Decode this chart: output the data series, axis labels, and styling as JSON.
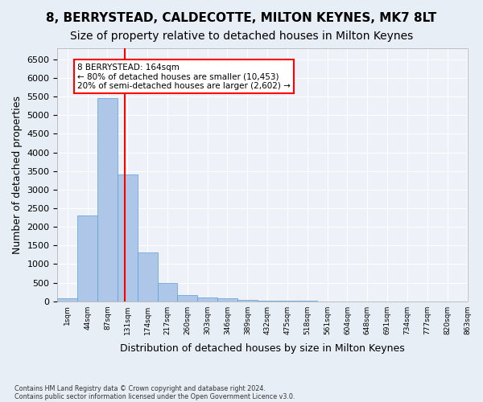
{
  "title1": "8, BERRYSTEAD, CALDECOTTE, MILTON KEYNES, MK7 8LT",
  "title2": "Size of property relative to detached houses in Milton Keynes",
  "xlabel": "Distribution of detached houses by size in Milton Keynes",
  "ylabel": "Number of detached properties",
  "footnote1": "Contains HM Land Registry data © Crown copyright and database right 2024.",
  "footnote2": "Contains public sector information licensed under the Open Government Licence v3.0.",
  "bar_values": [
    70,
    2300,
    5450,
    3400,
    1300,
    480,
    160,
    90,
    70,
    35,
    20,
    10,
    5,
    3,
    2,
    1,
    1,
    0,
    0,
    0
  ],
  "bin_labels": [
    "1sqm",
    "44sqm",
    "87sqm",
    "131sqm",
    "174sqm",
    "217sqm",
    "260sqm",
    "303sqm",
    "346sqm",
    "389sqm",
    "432sqm",
    "475sqm",
    "518sqm",
    "561sqm",
    "604sqm",
    "648sqm",
    "691sqm",
    "734sqm",
    "777sqm",
    "820sqm",
    "863sqm"
  ],
  "bar_color": "#aec6e8",
  "bar_edge_color": "#5a9fd4",
  "vline_x": 2.85,
  "vline_color": "red",
  "annotation_text": "8 BERRYSTEAD: 164sqm\n← 80% of detached houses are smaller (10,453)\n20% of semi-detached houses are larger (2,602) →",
  "annotation_box_color": "red",
  "annotation_box_facecolor": "white",
  "ylim": [
    0,
    6800
  ],
  "yticks": [
    0,
    500,
    1000,
    1500,
    2000,
    2500,
    3000,
    3500,
    4000,
    4500,
    5000,
    5500,
    6000,
    6500
  ],
  "bg_color": "#e8eef5",
  "plot_bg_color": "#eef2f8",
  "grid_color": "white",
  "title1_fontsize": 11,
  "title2_fontsize": 10,
  "xlabel_fontsize": 9,
  "ylabel_fontsize": 9
}
